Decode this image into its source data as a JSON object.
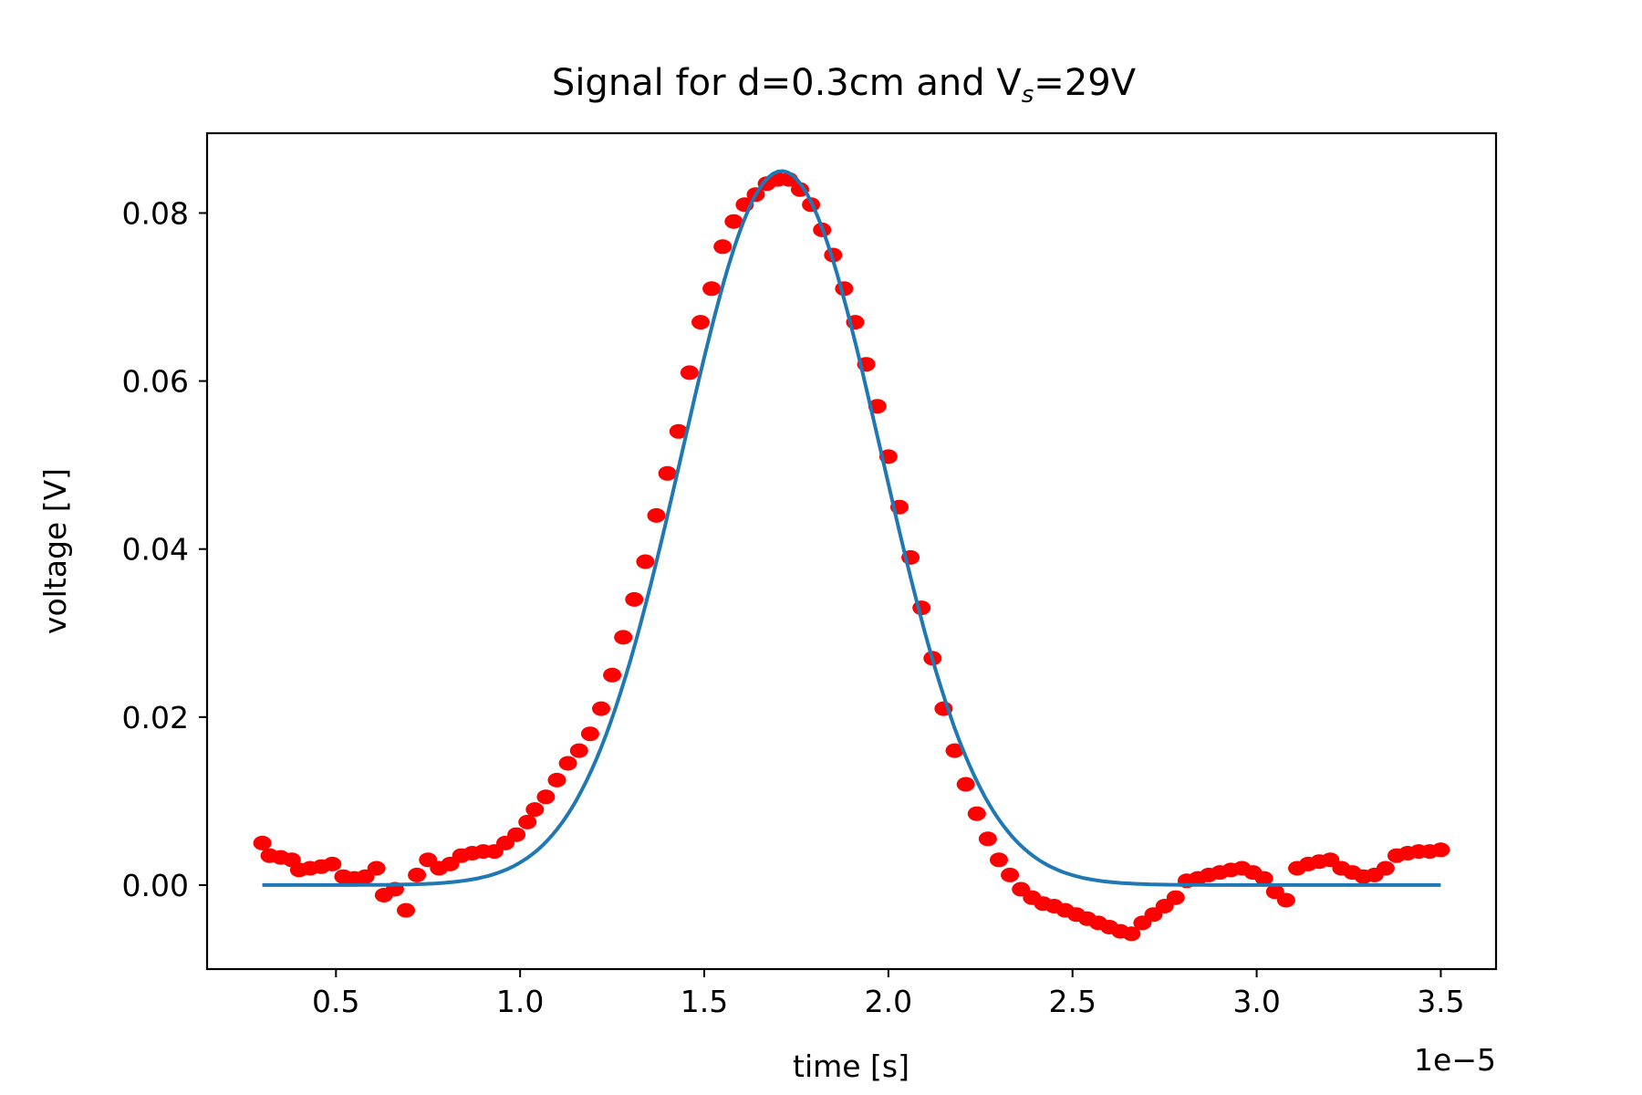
{
  "chart_data": {
    "type": "scatter",
    "title": "Signal for d=0.3cm and V",
    "title_subscript": "s",
    "title_suffix": "=29V",
    "xlabel": "time [s]",
    "ylabel": "voltage [V]",
    "x_offset_text": "1e−5",
    "x_ticks": [
      0.5,
      1.0,
      1.5,
      2.0,
      2.5,
      3.0,
      3.5
    ],
    "x_tick_labels": [
      "0.5",
      "1.0",
      "1.5",
      "2.0",
      "2.5",
      "3.0",
      "3.5"
    ],
    "y_ticks": [
      0.0,
      0.02,
      0.04,
      0.06,
      0.08
    ],
    "y_tick_labels": [
      "0.00",
      "0.02",
      "0.04",
      "0.06",
      "0.08"
    ],
    "xlim": [
      0.15,
      3.65
    ],
    "ylim": [
      -0.01,
      0.0895
    ],
    "grid": false,
    "colors": {
      "points": "#ff0000",
      "fit": "#1f77b4",
      "axes": "#000000"
    },
    "series": [
      {
        "kind": "scatter",
        "x": [
          0.3,
          0.32,
          0.35,
          0.38,
          0.4,
          0.43,
          0.46,
          0.49,
          0.52,
          0.55,
          0.58,
          0.61,
          0.63,
          0.66,
          0.69,
          0.72,
          0.75,
          0.78,
          0.81,
          0.84,
          0.87,
          0.9,
          0.93,
          0.96,
          0.99,
          1.02,
          1.04,
          1.07,
          1.1,
          1.13,
          1.16,
          1.19,
          1.22,
          1.25,
          1.28,
          1.31,
          1.34,
          1.37,
          1.4,
          1.43,
          1.46,
          1.49,
          1.52,
          1.55,
          1.58,
          1.61,
          1.64,
          1.67,
          1.7,
          1.73,
          1.76,
          1.79,
          1.82,
          1.85,
          1.88,
          1.91,
          1.94,
          1.97,
          2.0,
          2.03,
          2.06,
          2.09,
          2.12,
          2.15,
          2.18,
          2.21,
          2.24,
          2.27,
          2.3,
          2.33,
          2.36,
          2.39,
          2.42,
          2.45,
          2.48,
          2.51,
          2.54,
          2.57,
          2.6,
          2.63,
          2.66,
          2.69,
          2.72,
          2.75,
          2.78,
          2.81,
          2.84,
          2.87,
          2.9,
          2.93,
          2.96,
          2.99,
          3.02,
          3.05,
          3.08,
          3.11,
          3.14,
          3.17,
          3.2,
          3.23,
          3.26,
          3.29,
          3.32,
          3.35,
          3.38,
          3.41,
          3.44,
          3.47,
          3.5
        ],
        "y": [
          0.005,
          0.0035,
          0.0033,
          0.003,
          0.0018,
          0.002,
          0.0022,
          0.0025,
          0.001,
          0.0008,
          0.001,
          0.002,
          -0.0012,
          -0.0005,
          -0.003,
          0.0012,
          0.003,
          0.002,
          0.0025,
          0.0035,
          0.0038,
          0.004,
          0.004,
          0.005,
          0.006,
          0.0075,
          0.009,
          0.0105,
          0.0125,
          0.0145,
          0.016,
          0.018,
          0.021,
          0.025,
          0.0295,
          0.034,
          0.0385,
          0.044,
          0.049,
          0.054,
          0.061,
          0.067,
          0.071,
          0.076,
          0.079,
          0.081,
          0.0822,
          0.0835,
          0.084,
          0.084,
          0.0828,
          0.081,
          0.078,
          0.075,
          0.071,
          0.067,
          0.062,
          0.057,
          0.051,
          0.045,
          0.039,
          0.033,
          0.027,
          0.021,
          0.016,
          0.012,
          0.0085,
          0.0055,
          0.003,
          0.0012,
          -0.0005,
          -0.0015,
          -0.0022,
          -0.0025,
          -0.003,
          -0.0035,
          -0.004,
          -0.0045,
          -0.005,
          -0.0055,
          -0.0058,
          -0.0045,
          -0.0035,
          -0.0025,
          -0.0015,
          0.0005,
          0.0008,
          0.0012,
          0.0015,
          0.0018,
          0.002,
          0.0015,
          0.0008,
          -0.0008,
          -0.0018,
          0.002,
          0.0025,
          0.0028,
          0.003,
          0.002,
          0.0015,
          0.001,
          0.0012,
          0.002,
          0.0035,
          0.0038,
          0.004,
          0.004,
          0.0042
        ]
      },
      {
        "kind": "line",
        "model": "gaussian",
        "amplitude": 0.085,
        "center": 1.71,
        "sigma": 0.27,
        "x_range": [
          0.3,
          3.5
        ]
      }
    ]
  }
}
